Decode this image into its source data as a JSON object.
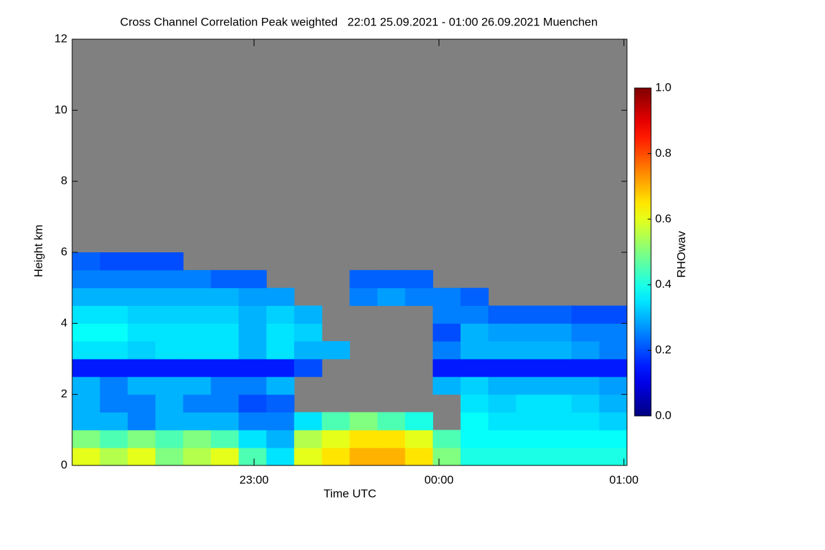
{
  "chart_data": {
    "type": "heatmap",
    "title": "Cross Channel Correlation Peak weighted   22:01 25.09.2021 - 01:00 26.09.2021 Muenchen",
    "x_label": "Time UTC",
    "y_label": "Height km",
    "colorbar_label": "RHOwav",
    "x": [
      1,
      10,
      19,
      28,
      37,
      46,
      55,
      64,
      73,
      82,
      91,
      100,
      109,
      118,
      127,
      136,
      145,
      154,
      163,
      172,
      181
    ],
    "y": [
      0,
      0.5,
      1,
      1.5,
      2,
      2.5,
      3,
      3.5,
      4,
      4.5,
      5,
      5.5,
      6
    ],
    "z": [
      [
        0.6,
        0.55,
        0.6,
        0.5,
        0.55,
        0.6,
        0.45,
        0.35,
        0.6,
        0.65,
        0.7,
        0.7,
        0.65,
        0.5,
        0.4,
        0.4,
        0.4,
        0.4,
        0.4,
        0.4
      ],
      [
        0.5,
        0.45,
        0.5,
        0.45,
        0.5,
        0.45,
        0.35,
        0.3,
        0.55,
        0.6,
        0.65,
        0.65,
        0.6,
        0.45,
        0.38,
        0.38,
        0.38,
        0.38,
        0.38,
        0.38
      ],
      [
        0.3,
        0.3,
        0.25,
        0.3,
        0.3,
        0.3,
        0.25,
        0.25,
        0.35,
        0.45,
        0.5,
        0.45,
        0.4,
        null,
        0.38,
        0.35,
        0.35,
        0.35,
        0.35,
        0.33
      ],
      [
        0.3,
        0.25,
        0.25,
        0.3,
        0.25,
        0.25,
        0.2,
        0.22,
        null,
        null,
        null,
        null,
        null,
        null,
        0.35,
        0.33,
        0.35,
        0.35,
        0.33,
        0.3
      ],
      [
        0.3,
        0.25,
        0.3,
        0.3,
        0.3,
        0.25,
        0.25,
        0.3,
        null,
        null,
        null,
        null,
        null,
        0.3,
        0.33,
        0.3,
        0.3,
        0.3,
        0.3,
        0.28
      ],
      [
        0.15,
        0.15,
        0.15,
        0.15,
        0.15,
        0.15,
        0.15,
        0.15,
        0.2,
        null,
        null,
        null,
        null,
        0.15,
        0.15,
        0.15,
        0.15,
        0.15,
        0.15,
        0.15
      ],
      [
        0.35,
        0.35,
        0.33,
        0.35,
        0.35,
        0.35,
        0.3,
        0.35,
        0.3,
        0.3,
        null,
        null,
        null,
        0.25,
        0.3,
        0.3,
        0.3,
        0.3,
        0.28,
        0.25
      ],
      [
        0.38,
        0.38,
        0.35,
        0.35,
        0.35,
        0.35,
        0.3,
        0.35,
        0.33,
        null,
        null,
        null,
        null,
        0.2,
        0.3,
        0.28,
        0.28,
        0.28,
        0.25,
        0.25
      ],
      [
        0.35,
        0.35,
        0.33,
        0.33,
        0.33,
        0.33,
        0.3,
        0.33,
        0.3,
        null,
        null,
        null,
        null,
        0.25,
        0.25,
        0.22,
        0.22,
        0.22,
        0.2,
        0.2
      ],
      [
        0.3,
        0.3,
        0.3,
        0.3,
        0.3,
        0.3,
        0.28,
        0.28,
        null,
        null,
        0.25,
        0.28,
        0.25,
        0.25,
        0.22,
        null,
        null,
        null,
        null,
        null
      ],
      [
        0.25,
        0.25,
        0.25,
        0.25,
        0.25,
        0.22,
        0.22,
        null,
        null,
        null,
        0.22,
        0.22,
        0.22,
        null,
        null,
        null,
        null,
        null,
        null,
        null
      ],
      [
        0.22,
        0.2,
        0.2,
        0.2,
        null,
        null,
        null,
        null,
        null,
        null,
        null,
        null,
        null,
        null,
        null,
        null,
        null,
        null,
        null,
        null
      ]
    ],
    "xlim": [
      1,
      181
    ],
    "xticks": [
      {
        "value": 60,
        "label": "23:00"
      },
      {
        "value": 120,
        "label": "00:00"
      },
      {
        "value": 180,
        "label": "01:00"
      }
    ],
    "ylim": [
      0,
      12
    ],
    "yticks": [
      0,
      2,
      4,
      6,
      8,
      10,
      12
    ],
    "zlim": [
      0,
      1
    ],
    "zticks": [
      {
        "value": 0,
        "label": "0.0"
      },
      0.2,
      0.4,
      0.6,
      0.8,
      {
        "value": 1,
        "label": "1.0"
      }
    ],
    "colormap": "jet",
    "missing_color": "#808080"
  }
}
